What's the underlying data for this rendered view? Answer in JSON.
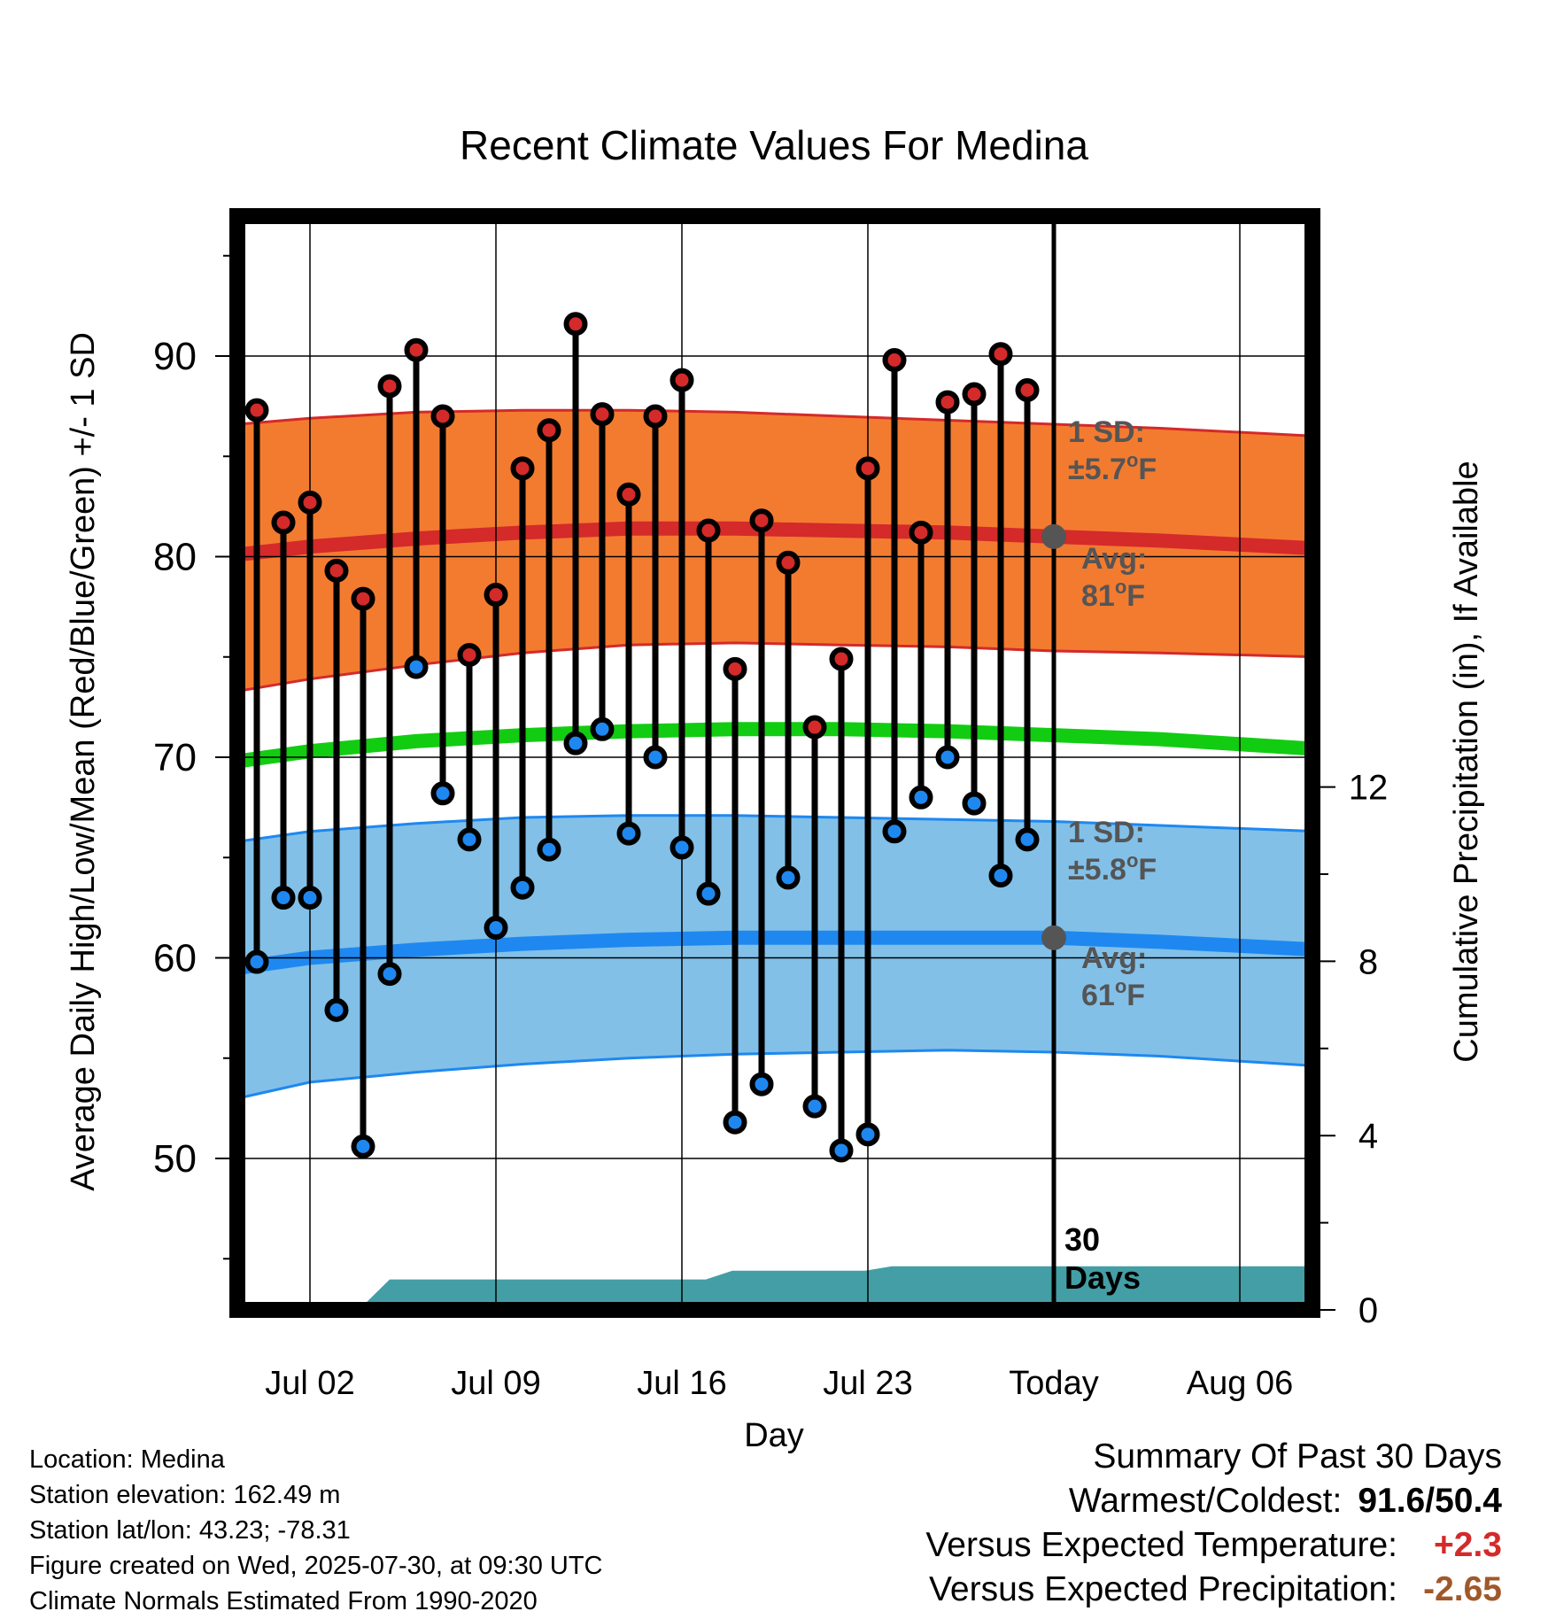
{
  "chart_data": {
    "type": "line",
    "title": "Recent Climate Values For Medina",
    "xlabel": "Day",
    "ylabel": "Average Daily High/Low/Mean (Red/Blue/Green) +/- 1 SD",
    "y2label": "Cumulative Precipitation (in), If Available",
    "ylim": [
      41.5,
      97.5
    ],
    "y_ticks": [
      "50",
      "60",
      "70",
      "80",
      "90"
    ],
    "y2lim": [
      0,
      22.5
    ],
    "y2_ticks": [
      "0",
      "4",
      "8",
      "12"
    ],
    "x_ticks": [
      {
        "day": 2,
        "label": "Jul 02"
      },
      {
        "day": 9,
        "label": "Jul 09"
      },
      {
        "day": 16,
        "label": "Jul 16"
      },
      {
        "day": 23,
        "label": "Jul 23"
      },
      {
        "day": 30,
        "label": "Today"
      },
      {
        "day": 37,
        "label": "Aug 06"
      }
    ],
    "xlim": [
      -0.7,
      40
    ],
    "today_day": 30,
    "colors": {
      "high_band": "#f37b30",
      "high_edge": "#d42a2a",
      "high_mean": "#d42a2a",
      "low_band": "#82c0e8",
      "low_edge": "#1e88f0",
      "low_mean": "#1e88f0",
      "mean": "#12cc12",
      "precip": "#449ea5",
      "high_dot": "#d42a2a",
      "low_dot": "#1e88f0",
      "avg_dot": "#555555"
    },
    "daily": {
      "days": [
        0,
        1,
        2,
        3,
        4,
        5,
        6,
        7,
        8,
        9,
        10,
        11,
        12,
        13,
        14,
        15,
        16,
        17,
        18,
        19,
        20,
        21,
        22,
        23,
        24,
        25,
        26,
        27,
        28,
        29
      ],
      "highs": [
        87.3,
        81.7,
        82.7,
        79.3,
        77.9,
        88.5,
        90.3,
        87.0,
        75.1,
        78.1,
        84.4,
        86.3,
        91.6,
        87.1,
        83.1,
        87.0,
        88.8,
        81.3,
        74.4,
        81.8,
        79.7,
        71.5,
        74.9,
        84.4,
        89.8,
        81.2,
        87.7,
        88.1,
        90.1,
        88.3
      ],
      "lows": [
        59.8,
        63.0,
        63.0,
        57.4,
        50.6,
        59.2,
        74.5,
        68.2,
        65.9,
        61.5,
        63.5,
        65.4,
        70.7,
        71.4,
        66.2,
        70.0,
        65.5,
        63.2,
        51.8,
        53.7,
        64.0,
        52.6,
        50.4,
        51.2,
        66.3,
        68.0,
        70.0,
        67.7,
        64.1,
        65.9
      ]
    },
    "normals": {
      "days": [
        -0.7,
        2,
        6,
        10,
        14,
        18,
        22,
        26,
        30,
        34,
        40
      ],
      "high_mean": [
        80.1,
        80.5,
        80.9,
        81.2,
        81.4,
        81.4,
        81.3,
        81.2,
        81.0,
        80.8,
        80.4
      ],
      "high_upper": [
        86.6,
        86.9,
        87.2,
        87.3,
        87.3,
        87.2,
        87.0,
        86.8,
        86.6,
        86.4,
        86.0
      ],
      "high_lower": [
        73.3,
        73.9,
        74.6,
        75.2,
        75.6,
        75.7,
        75.6,
        75.5,
        75.3,
        75.2,
        75.0
      ],
      "low_mean": [
        59.5,
        60.0,
        60.4,
        60.7,
        60.9,
        61.0,
        61.0,
        61.0,
        61.0,
        60.8,
        60.4
      ],
      "low_upper": [
        65.8,
        66.3,
        66.7,
        67.0,
        67.1,
        67.1,
        67.0,
        66.9,
        66.8,
        66.6,
        66.3
      ],
      "low_lower": [
        53.0,
        53.8,
        54.3,
        54.7,
        55.0,
        55.2,
        55.3,
        55.4,
        55.3,
        55.1,
        54.6
      ],
      "mean": [
        69.8,
        70.3,
        70.8,
        71.1,
        71.3,
        71.4,
        71.4,
        71.3,
        71.1,
        70.9,
        70.4
      ]
    },
    "precip": {
      "days": [
        0.7,
        4,
        4,
        5,
        5,
        16.9,
        17.9,
        17.9,
        22.9,
        23.9,
        23.9,
        33,
        40
      ],
      "values": [
        0.1,
        0.1,
        0.1,
        0.7,
        0.7,
        0.7,
        0.9,
        0.9,
        0.9,
        1.0,
        1.0,
        1.0,
        1.0
      ]
    },
    "annotations": {
      "high_sd": {
        "line1": "1 SD:",
        "line2": "±5.7",
        "unit": "F"
      },
      "high_avg": {
        "line1": "Avg:",
        "line2": "81",
        "unit": "F",
        "value": 81
      },
      "low_sd": {
        "line1": "1 SD:",
        "line2": "±5.8",
        "unit": "F"
      },
      "low_avg": {
        "line1": "Avg:",
        "line2": "61",
        "unit": "F",
        "value": 61
      },
      "today_line1": "30",
      "today_line2": "Days",
      "degree": "o"
    },
    "grid": true,
    "legend": "none"
  },
  "footer": {
    "location": "Location: Medina",
    "elevation": "Station elevation: 162.49 m",
    "latlon": "Station lat/lon: 43.23; -78.31",
    "created": "Figure created on Wed, 2025-07-30, at 09:30 UTC",
    "normals": "Climate Normals Estimated From 1990-2020"
  },
  "summary": {
    "heading": "Summary Of Past 30 Days",
    "warm_cold_label": "Warmest/Coldest:",
    "warm_cold_value": "91.6/50.4",
    "temp_label": "Versus Expected Temperature:",
    "temp_value": "+2.3",
    "temp_color": "#d42a2a",
    "precip_label": "Versus Expected Precipitation:",
    "precip_value": "-2.65",
    "precip_color": "#a0582a"
  }
}
